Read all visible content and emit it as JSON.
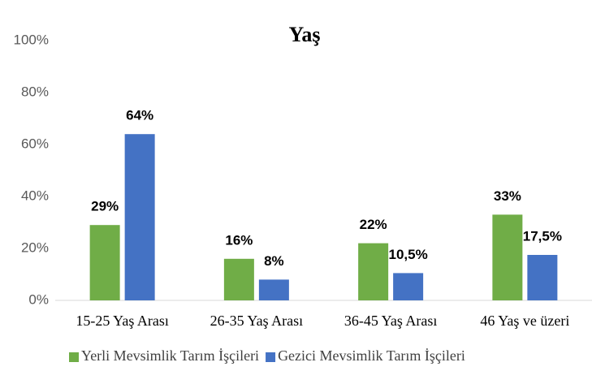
{
  "chart_data": {
    "type": "bar",
    "title": "Yaş",
    "categories": [
      "15-25 Yaş Arası",
      "26-35 Yaş Arası",
      "36-45 Yaş Arası",
      "46 Yaş ve üzeri"
    ],
    "series": [
      {
        "name": "Yerli Mevsimlik Tarım İşçileri",
        "color": "#70ad47",
        "values": [
          29,
          16,
          22,
          33
        ],
        "value_labels": [
          "29%",
          "16%",
          "22%",
          "33%"
        ]
      },
      {
        "name": "Gezici Mevsimlik Tarım İşçileri",
        "color": "#4472c4",
        "values": [
          64,
          8,
          10.5,
          17.5
        ],
        "value_labels": [
          "64%",
          "8%",
          "10,5%",
          "17,5%"
        ]
      }
    ],
    "ylim": [
      0,
      100
    ],
    "yticks": [
      {
        "value": 0,
        "label": "0%"
      },
      {
        "value": 20,
        "label": "20%"
      },
      {
        "value": 40,
        "label": "40%"
      },
      {
        "value": 60,
        "label": "60%"
      },
      {
        "value": 80,
        "label": "80%"
      },
      {
        "value": 100,
        "label": "100%"
      }
    ],
    "grid": false,
    "legend": "bottom"
  }
}
